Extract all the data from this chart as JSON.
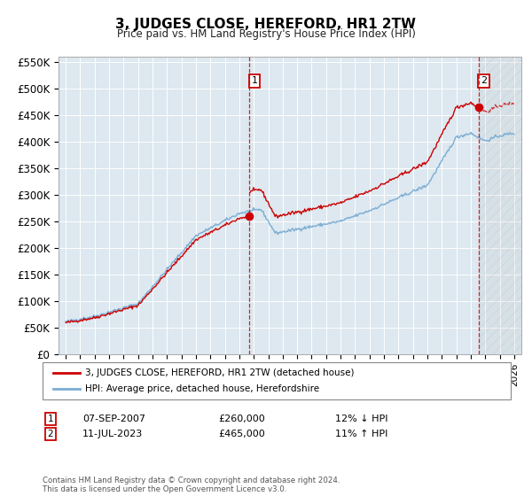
{
  "title": "3, JUDGES CLOSE, HEREFORD, HR1 2TW",
  "subtitle": "Price paid vs. HM Land Registry's House Price Index (HPI)",
  "ylim": [
    0,
    575000
  ],
  "yticks": [
    0,
    50000,
    100000,
    150000,
    200000,
    250000,
    300000,
    350000,
    400000,
    450000,
    500000,
    550000
  ],
  "ytick_labels": [
    "£0",
    "£50K",
    "£100K",
    "£150K",
    "£200K",
    "£250K",
    "£300K",
    "£350K",
    "£400K",
    "£450K",
    "£500K",
    "£550K"
  ],
  "background_color": "#dde8f0",
  "hpi_color": "#7aadd4",
  "price_color": "#cc0000",
  "transaction1": {
    "date": "07-SEP-2007",
    "price": 260000,
    "label": "1",
    "pct": "12% ↓ HPI"
  },
  "transaction2": {
    "date": "11-JUL-2023",
    "price": 465000,
    "label": "2",
    "pct": "11% ↑ HPI"
  },
  "legend_label1": "3, JUDGES CLOSE, HEREFORD, HR1 2TW (detached house)",
  "legend_label2": "HPI: Average price, detached house, Herefordshire",
  "footnote": "Contains HM Land Registry data © Crown copyright and database right 2024.\nThis data is licensed under the Open Government Licence v3.0.",
  "sale1_x": 2007.69,
  "sale2_x": 2023.53
}
